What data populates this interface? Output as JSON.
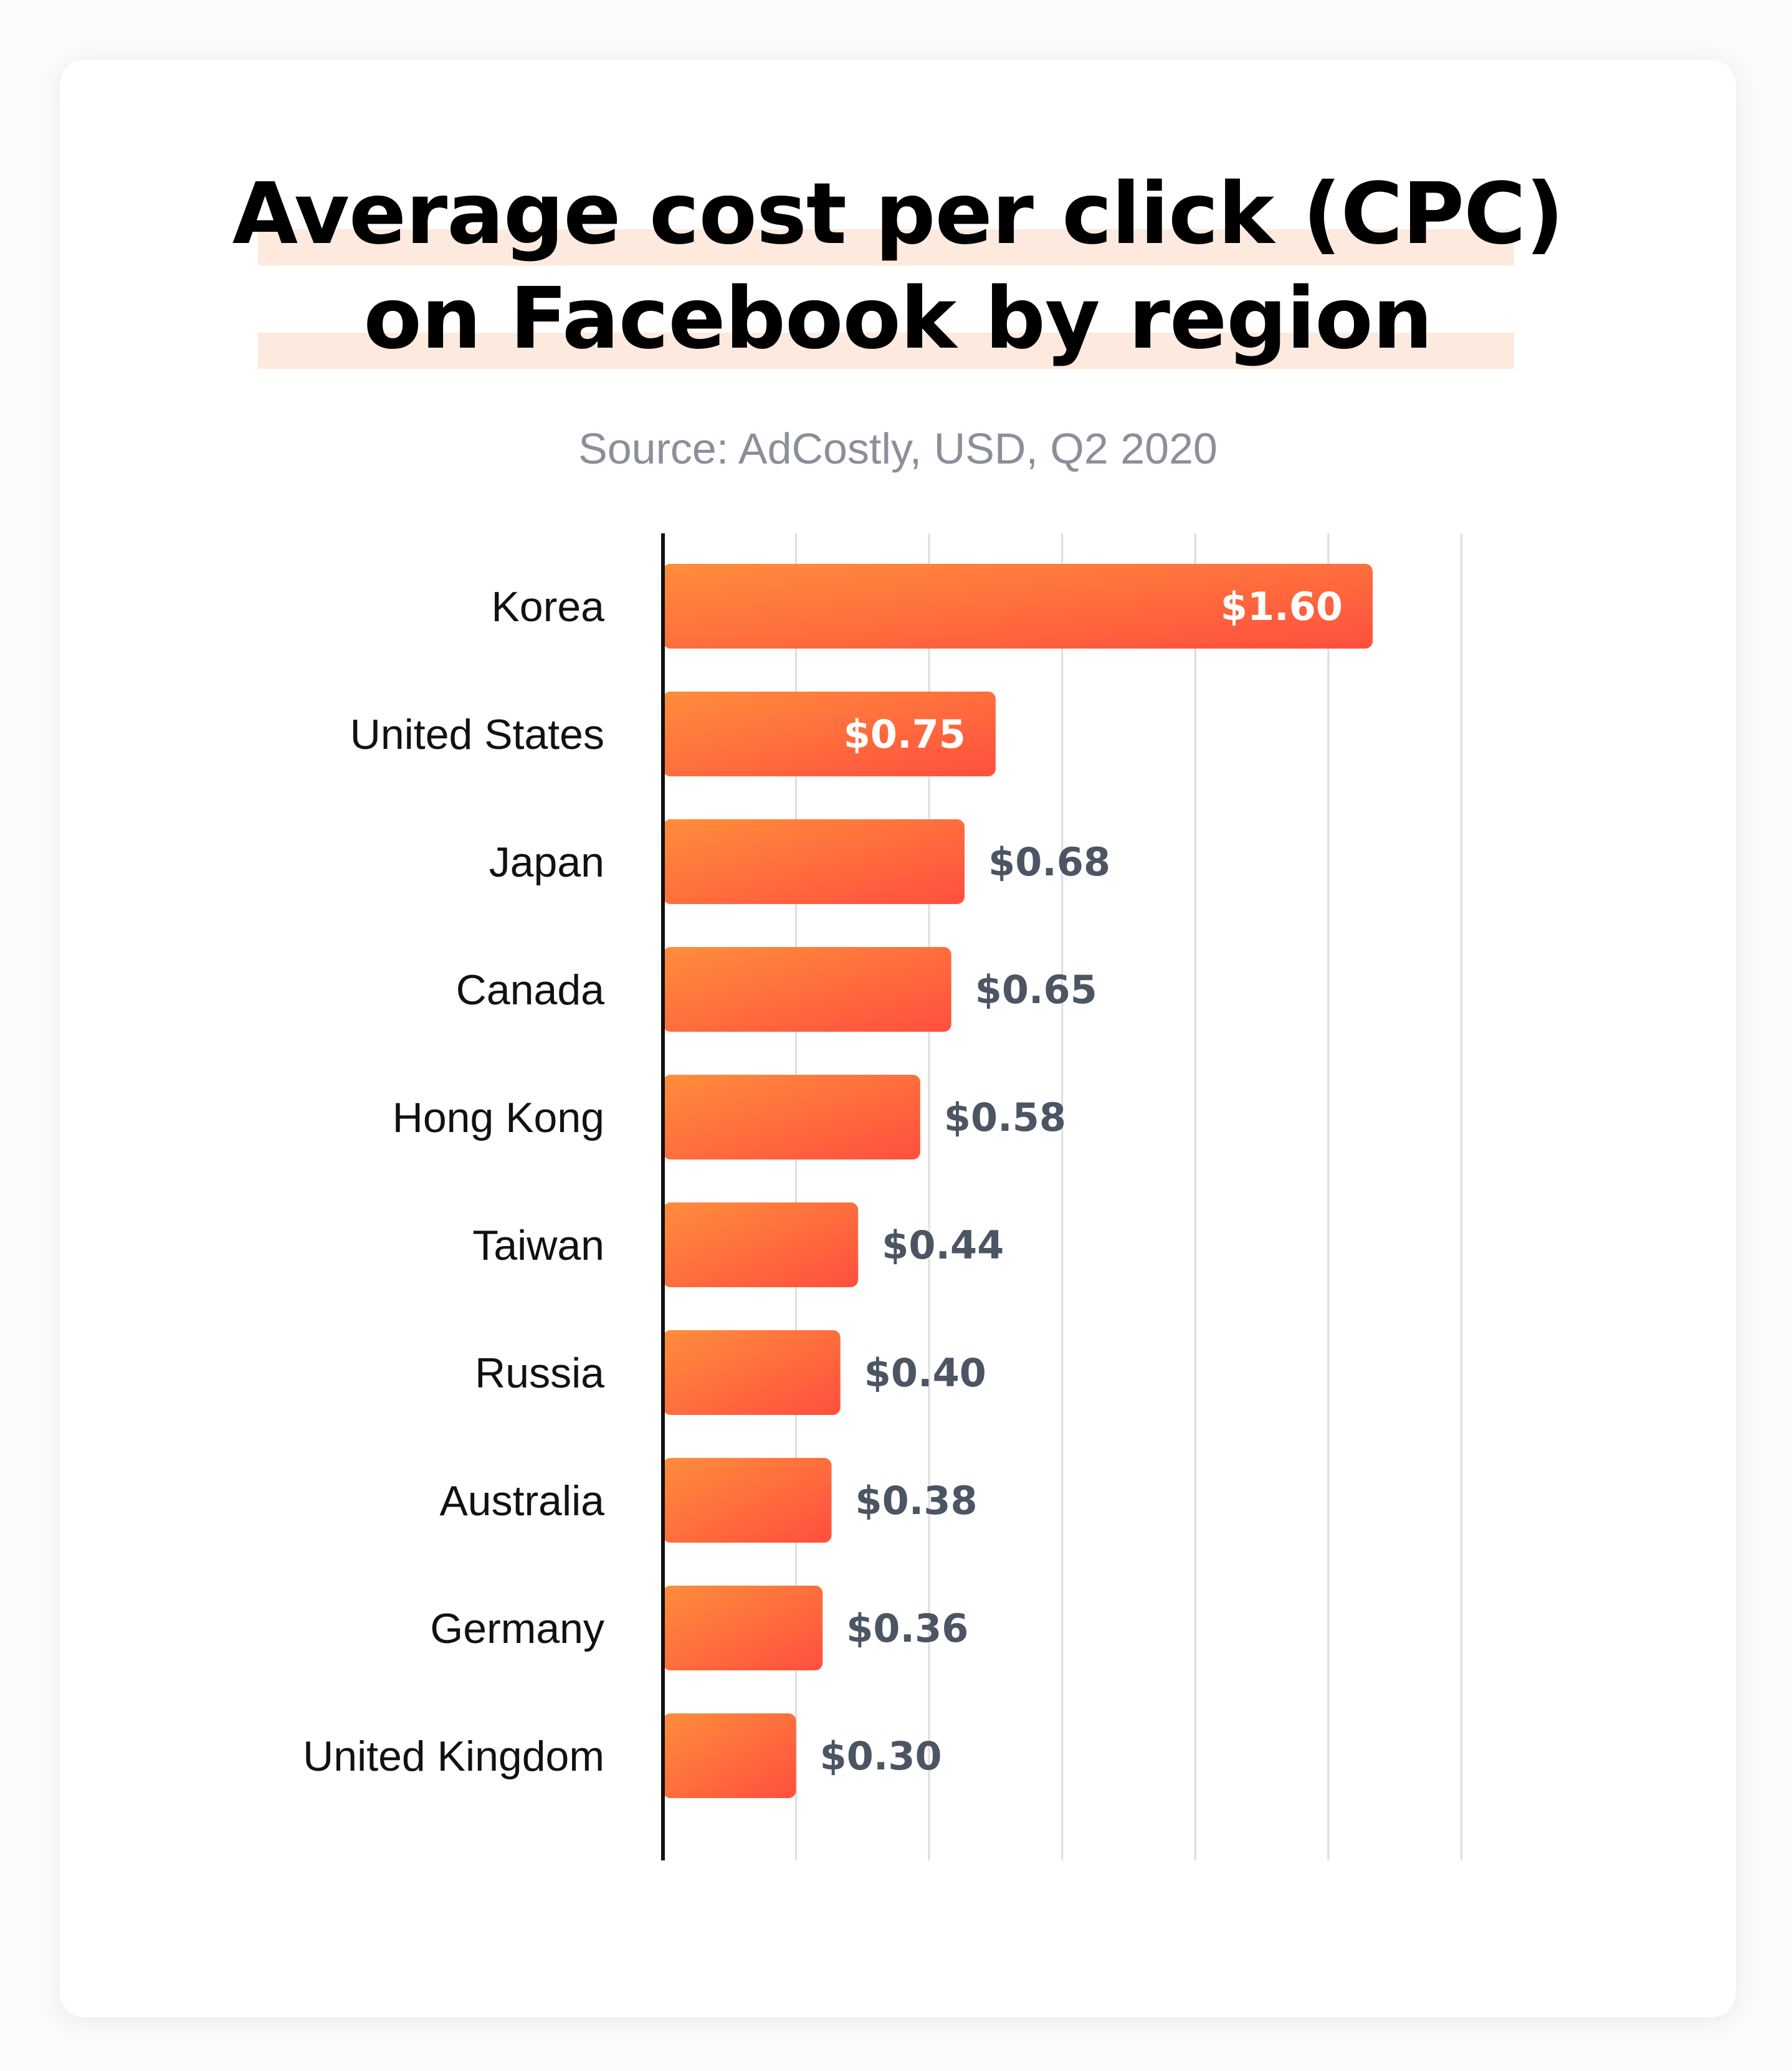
{
  "title": {
    "line1": "Average cost per click (CPC)",
    "line2": "on Facebook by region"
  },
  "subtitle": "Source: AdCostly, USD, Q2 2020",
  "colors": {
    "bar_start": "#ff8d3c",
    "bar_end": "#ff4f3e",
    "highlight": "#fde9dd",
    "label_dark": "#4b5563",
    "label_light": "#ffffff",
    "grid": "#dddddd",
    "axis": "#111111"
  },
  "chart_data": {
    "type": "bar",
    "orientation": "horizontal",
    "title": "Average cost per click (CPC) on Facebook by region",
    "subtitle": "Source: AdCostly, USD, Q2 2020",
    "xlabel": "",
    "ylabel": "",
    "xlim": [
      0,
      1.8
    ],
    "grid": true,
    "categories": [
      "Korea",
      "United States",
      "Japan",
      "Canada",
      "Hong Kong",
      "Taiwan",
      "Russia",
      "Australia",
      "Germany",
      "United Kingdom"
    ],
    "values": [
      1.6,
      0.75,
      0.68,
      0.65,
      0.58,
      0.44,
      0.4,
      0.38,
      0.36,
      0.3
    ],
    "value_labels": [
      "$1.60",
      "$0.75",
      "$0.68",
      "$0.65",
      "$0.58",
      "$0.44",
      "$0.40",
      "$0.38",
      "$0.36",
      "$0.30"
    ],
    "label_inside": [
      true,
      true,
      false,
      false,
      false,
      false,
      false,
      false,
      false,
      false
    ]
  }
}
